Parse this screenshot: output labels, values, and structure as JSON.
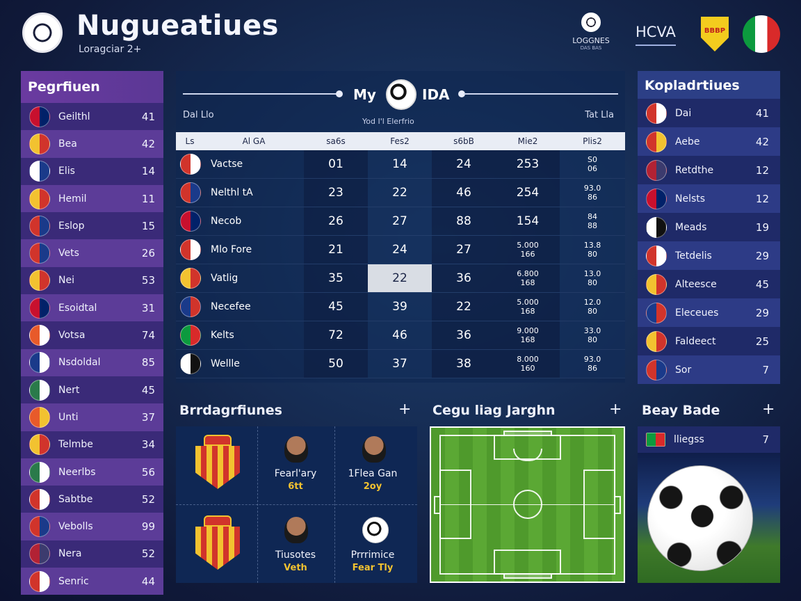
{
  "header": {
    "title": "Nugueatiues",
    "subtitle": "Loragciar 2+",
    "badge_title": "LOGGNES",
    "badge_sub": "DAS BAS",
    "link": "HCVA",
    "shield_text": "BBBP"
  },
  "left_panel": {
    "title": "Pegrfiuen",
    "rows": [
      {
        "name": "Geilthl",
        "value": "41",
        "flag": [
          "#c8102e",
          "#012169"
        ]
      },
      {
        "name": "Bea",
        "value": "42",
        "flag": [
          "#f2c230",
          "#d1342b"
        ]
      },
      {
        "name": "Elis",
        "value": "14",
        "flag": [
          "#ffffff",
          "#1a3a8a"
        ]
      },
      {
        "name": "Hemil",
        "value": "11",
        "flag": [
          "#f2c230",
          "#d1342b"
        ]
      },
      {
        "name": "Eslop",
        "value": "15",
        "flag": [
          "#d1342b",
          "#1a3a8a"
        ]
      },
      {
        "name": "Vets",
        "value": "26",
        "flag": [
          "#d1342b",
          "#1a3a8a"
        ]
      },
      {
        "name": "Nei",
        "value": "53",
        "flag": [
          "#f2c230",
          "#d1342b"
        ]
      },
      {
        "name": "Esoidtal",
        "value": "31",
        "flag": [
          "#c8102e",
          "#012169"
        ]
      },
      {
        "name": "Votsa",
        "value": "74",
        "flag": [
          "#e85a2a",
          "#ffffff"
        ]
      },
      {
        "name": "Nsdoldal",
        "value": "85",
        "flag": [
          "#1a3a8a",
          "#ffffff"
        ]
      },
      {
        "name": "Nert",
        "value": "45",
        "flag": [
          "#2a7a4a",
          "#ffffff"
        ]
      },
      {
        "name": "Unti",
        "value": "37",
        "flag": [
          "#e85a2a",
          "#f2c230"
        ]
      },
      {
        "name": "Telmbe",
        "value": "34",
        "flag": [
          "#f2c230",
          "#d1342b"
        ]
      },
      {
        "name": "Neerlbs",
        "value": "56",
        "flag": [
          "#2a7a4a",
          "#ffffff"
        ]
      },
      {
        "name": "Sabtbe",
        "value": "52",
        "flag": [
          "#d1342b",
          "#ffffff"
        ]
      },
      {
        "name": "Vebolls",
        "value": "99",
        "flag": [
          "#d1342b",
          "#1a3a8a"
        ]
      },
      {
        "name": "Nera",
        "value": "52",
        "flag": [
          "#b22234",
          "#3c3b6e"
        ]
      },
      {
        "name": "Senric",
        "value": "44",
        "flag": [
          "#d1342b",
          "#ffffff"
        ]
      }
    ]
  },
  "table": {
    "title_left": "My",
    "title_right": "IDA",
    "sub_left": "Dal Llo",
    "sub_right": "Tat Lla",
    "sub_mid": "Yod I'l Elerfrio",
    "headers": [
      "Ls",
      "Al GA",
      "sa6s",
      "Fes2",
      "s6bB",
      "Mie2",
      "Plis2"
    ],
    "rows": [
      {
        "team": "Vactse",
        "c1": "01",
        "c2": "14",
        "c3": "24",
        "c4": "253",
        "c5a": "S0",
        "c5b": "06",
        "flag": [
          "#d1342b",
          "#ffffff"
        ]
      },
      {
        "team": "Nelthl tA",
        "c1": "23",
        "c2": "22",
        "c3": "46",
        "c4": "254",
        "c5a": "93.0",
        "c5b": "86",
        "flag": [
          "#d1342b",
          "#1a3a8a"
        ]
      },
      {
        "team": "Necob",
        "c1": "26",
        "c2": "27",
        "c3": "88",
        "c4": "154",
        "c5a": "84",
        "c5b": "88",
        "flag": [
          "#c8102e",
          "#012169"
        ]
      },
      {
        "team": "Mlo Fore",
        "c1": "21",
        "c2": "24",
        "c3": "27",
        "c4a": "5.000",
        "c4b": "166",
        "c5a": "13.8",
        "c5b": "80",
        "flag": [
          "#d1342b",
          "#ffffff"
        ]
      },
      {
        "team": "Vatlig",
        "c1": "35",
        "c2": "22",
        "c3": "36",
        "c4a": "6.800",
        "c4b": "168",
        "c5a": "13.0",
        "c5b": "80",
        "flag": [
          "#f2c230",
          "#d1342b"
        ]
      },
      {
        "team": "Necefee",
        "c1": "45",
        "c2": "39",
        "c3": "22",
        "c4a": "5.000",
        "c4b": "168",
        "c5a": "12.0",
        "c5b": "80",
        "flag": [
          "#1a3a8a",
          "#d1342b"
        ]
      },
      {
        "team": "Kelts",
        "c1": "72",
        "c2": "46",
        "c3": "36",
        "c4a": "9.000",
        "c4b": "168",
        "c5a": "33.0",
        "c5b": "80",
        "flag": [
          "#0c9a3e",
          "#d92a2a"
        ]
      },
      {
        "team": "Wellle",
        "c1": "50",
        "c2": "37",
        "c3": "38",
        "c4a": "8.000",
        "c4b": "160",
        "c5a": "93.0",
        "c5b": "86",
        "flag": [
          "#ffffff",
          "#111111"
        ]
      }
    ]
  },
  "right_panel": {
    "title": "Kopladrtiues",
    "rows": [
      {
        "name": "Dai",
        "value": "41",
        "flag": [
          "#d1342b",
          "#ffffff"
        ]
      },
      {
        "name": "Aebe",
        "value": "42",
        "flag": [
          "#d1342b",
          "#f2c230"
        ]
      },
      {
        "name": "Retdthe",
        "value": "12",
        "flag": [
          "#b22234",
          "#3c3b6e"
        ]
      },
      {
        "name": "Nelsts",
        "value": "12",
        "flag": [
          "#c8102e",
          "#012169"
        ]
      },
      {
        "name": "Meads",
        "value": "19",
        "flag": [
          "#ffffff",
          "#111111"
        ]
      },
      {
        "name": "Tetdelis",
        "value": "29",
        "flag": [
          "#d1342b",
          "#ffffff"
        ]
      },
      {
        "name": "Alteesce",
        "value": "45",
        "flag": [
          "#f2c230",
          "#d1342b"
        ]
      },
      {
        "name": "Eleceues",
        "value": "29",
        "flag": [
          "#1a3a8a",
          "#d1342b"
        ]
      },
      {
        "name": "Faldeect",
        "value": "25",
        "flag": [
          "#f2c230",
          "#d1342b"
        ]
      },
      {
        "name": "Sor",
        "value": "7",
        "flag": [
          "#d1342b",
          "#1a3a8a"
        ]
      }
    ]
  },
  "bottom_left": {
    "title": "Brrdagrfiunes",
    "players": [
      {
        "name": "Fearl'ary",
        "sub": "6tt"
      },
      {
        "name": "1Flea Gan",
        "sub": "2oy"
      },
      {
        "name": "Tiusotes",
        "sub": "Veth"
      },
      {
        "name": "Prrrimice",
        "sub": "Fear Tly"
      }
    ]
  },
  "bottom_mid": {
    "title": "Cegu liag Jarghn"
  },
  "bottom_right": {
    "title": "Beay Bade",
    "row_name": "lliegss",
    "row_value": "7",
    "row_flag": [
      "#0c9a3e",
      "#d92a2a"
    ]
  },
  "colors": {
    "accent_purple": "#5c3c98",
    "accent_blue": "#2d3b86",
    "gold": "#f2c230"
  }
}
